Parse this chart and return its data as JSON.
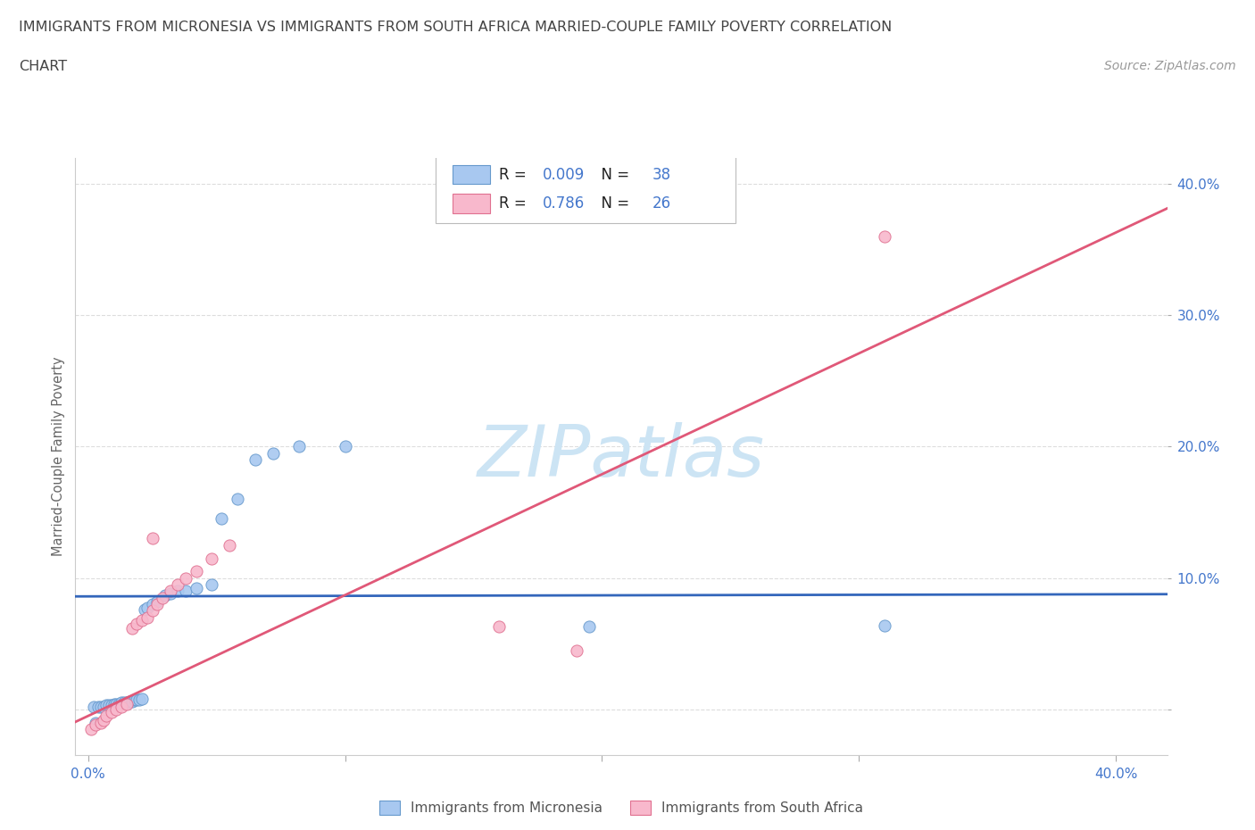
{
  "title_line1": "IMMIGRANTS FROM MICRONESIA VS IMMIGRANTS FROM SOUTH AFRICA MARRIED-COUPLE FAMILY POVERTY CORRELATION",
  "title_line2": "CHART",
  "source": "Source: ZipAtlas.com",
  "ylabel": "Married-Couple Family Poverty",
  "xlim": [
    -0.005,
    0.42
  ],
  "ylim": [
    -0.035,
    0.42
  ],
  "xticks": [
    0.0,
    0.1,
    0.2,
    0.3,
    0.4
  ],
  "yticks": [
    0.0,
    0.1,
    0.2,
    0.3,
    0.4
  ],
  "xtick_labels": [
    "0.0%",
    "",
    "",
    "",
    "40.0%"
  ],
  "ytick_labels": [
    "",
    "10.0%",
    "20.0%",
    "30.0%",
    "40.0%"
  ],
  "micronesia_color": "#a8c8f0",
  "micronesia_edge": "#6699cc",
  "micronesia_trend_color": "#3366bb",
  "micronesia_trend_slope": 0.004,
  "micronesia_trend_intercept": 0.086,
  "micronesia_R": "0.009",
  "micronesia_N": "38",
  "micronesia_name": "Immigrants from Micronesia",
  "micronesia_x": [
    0.002,
    0.004,
    0.005,
    0.006,
    0.007,
    0.008,
    0.009,
    0.01,
    0.011,
    0.012,
    0.013,
    0.014,
    0.015,
    0.016,
    0.017,
    0.018,
    0.019,
    0.02,
    0.021,
    0.022,
    0.023,
    0.025,
    0.027,
    0.03,
    0.032,
    0.035,
    0.038,
    0.042,
    0.048,
    0.052,
    0.058,
    0.065,
    0.072,
    0.082,
    0.1,
    0.195,
    0.31,
    0.003
  ],
  "micronesia_y": [
    0.002,
    0.002,
    0.002,
    0.002,
    0.003,
    0.003,
    0.003,
    0.004,
    0.004,
    0.004,
    0.005,
    0.005,
    0.005,
    0.006,
    0.006,
    0.007,
    0.007,
    0.007,
    0.008,
    0.076,
    0.077,
    0.08,
    0.082,
    0.087,
    0.088,
    0.09,
    0.09,
    0.092,
    0.095,
    0.145,
    0.16,
    0.19,
    0.195,
    0.2,
    0.2,
    0.063,
    0.064,
    -0.01
  ],
  "south_africa_color": "#f8b8cc",
  "south_africa_edge": "#e07090",
  "south_africa_trend_color": "#e05878",
  "south_africa_trend_slope": 0.92,
  "south_africa_trend_intercept": -0.005,
  "south_africa_R": "0.786",
  "south_africa_N": "26",
  "south_africa_name": "Immigrants from South Africa",
  "south_africa_x": [
    0.001,
    0.003,
    0.005,
    0.006,
    0.007,
    0.009,
    0.011,
    0.013,
    0.015,
    0.017,
    0.019,
    0.021,
    0.023,
    0.025,
    0.027,
    0.029,
    0.032,
    0.035,
    0.038,
    0.042,
    0.048,
    0.055,
    0.16,
    0.19,
    0.31,
    0.025
  ],
  "south_africa_y": [
    -0.015,
    -0.012,
    -0.01,
    -0.008,
    -0.005,
    -0.002,
    0.0,
    0.002,
    0.004,
    0.062,
    0.065,
    0.068,
    0.07,
    0.075,
    0.08,
    0.085,
    0.09,
    0.095,
    0.1,
    0.105,
    0.115,
    0.125,
    0.063,
    0.045,
    0.36,
    0.13
  ],
  "watermark": "ZIPatlas",
  "watermark_color": "#cce4f4",
  "background_color": "#ffffff",
  "grid_color": "#dddddd",
  "title_color": "#444444",
  "tick_color": "#4477cc",
  "legend_R_color": "#4477cc"
}
